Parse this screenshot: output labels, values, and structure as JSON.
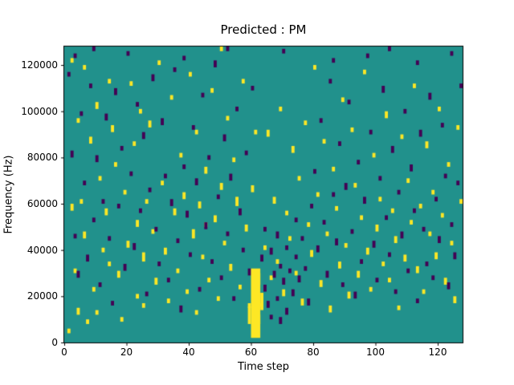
{
  "figure": {
    "title": "Predicted : PM",
    "xlabel": "Time step",
    "ylabel": "Frequency (Hz)"
  },
  "chart_data": {
    "type": "heatmap",
    "title": "Predicted : PM",
    "xlabel": "Time step",
    "ylabel": "Frequency (Hz)",
    "xlim": [
      0,
      128
    ],
    "ylim": [
      0,
      128000
    ],
    "x_ticks": [
      0,
      20,
      40,
      60,
      80,
      100,
      120
    ],
    "y_ticks": [
      0,
      20000,
      40000,
      60000,
      80000,
      100000,
      120000
    ],
    "grid": false,
    "legend": "none",
    "colors": {
      "background": "#21918c",
      "high": "#fde725",
      "low": "#440154",
      "figure_bg": "#ffffff",
      "spine": "#000000"
    },
    "streak": {
      "x": 60,
      "width": 3,
      "y_min": 2000,
      "y_max": 32000,
      "value": "high"
    },
    "points_high": [
      [
        1,
        4000,
        2
      ],
      [
        2,
        121000,
        2
      ],
      [
        2,
        57000,
        3
      ],
      [
        3,
        30000,
        2
      ],
      [
        4,
        95000,
        2
      ],
      [
        4,
        12000,
        3
      ],
      [
        5,
        60000,
        2
      ],
      [
        6,
        45000,
        3
      ],
      [
        6,
        118000,
        2
      ],
      [
        7,
        8000,
        2
      ],
      [
        8,
        86000,
        3
      ],
      [
        9,
        22000,
        2
      ],
      [
        10,
        12000,
        2
      ],
      [
        10,
        101000,
        3
      ],
      [
        11,
        70000,
        2
      ],
      [
        12,
        39000,
        2
      ],
      [
        13,
        55000,
        3
      ],
      [
        14,
        33000,
        2
      ],
      [
        14,
        112000,
        2
      ],
      [
        15,
        91000,
        3
      ],
      [
        16,
        76000,
        2
      ],
      [
        17,
        28000,
        3
      ],
      [
        18,
        9000,
        2
      ],
      [
        19,
        64000,
        2
      ],
      [
        20,
        41000,
        3
      ],
      [
        21,
        111000,
        2
      ],
      [
        22,
        85000,
        2
      ],
      [
        23,
        50000,
        3
      ],
      [
        23,
        19000,
        2
      ],
      [
        24,
        99000,
        2
      ],
      [
        25,
        35000,
        4
      ],
      [
        25,
        15000,
        2
      ],
      [
        26,
        60000,
        2
      ],
      [
        27,
        93000,
        3
      ],
      [
        28,
        47000,
        2
      ],
      [
        29,
        25000,
        3
      ],
      [
        30,
        120000,
        2
      ],
      [
        31,
        68000,
        2
      ],
      [
        32,
        38000,
        3
      ],
      [
        33,
        17000,
        2
      ],
      [
        34,
        105000,
        2
      ],
      [
        35,
        55000,
        3
      ],
      [
        36,
        30000,
        2
      ],
      [
        37,
        80000,
        2
      ],
      [
        38,
        62000,
        3
      ],
      [
        39,
        21000,
        2
      ],
      [
        40,
        115000,
        2
      ],
      [
        41,
        45000,
        4
      ],
      [
        42,
        90000,
        2
      ],
      [
        42,
        12000,
        2
      ],
      [
        43,
        58000,
        3
      ],
      [
        44,
        36000,
        2
      ],
      [
        45,
        73000,
        3
      ],
      [
        45,
        50000,
        2
      ],
      [
        46,
        26000,
        2
      ],
      [
        47,
        108000,
        2
      ],
      [
        48,
        52000,
        3
      ],
      [
        49,
        18000,
        2
      ],
      [
        50,
        126000,
        2
      ],
      [
        50,
        66000,
        3
      ],
      [
        51,
        42000,
        2
      ],
      [
        52,
        96000,
        2
      ],
      [
        53,
        31000,
        3
      ],
      [
        54,
        78000,
        2
      ],
      [
        55,
        59000,
        4
      ],
      [
        56,
        23000,
        2
      ],
      [
        57,
        112000,
        2
      ],
      [
        58,
        48000,
        3
      ],
      [
        59,
        15000,
        2
      ],
      [
        60,
        65000,
        3
      ],
      [
        61,
        90000,
        2
      ],
      [
        61,
        18000,
        4
      ],
      [
        62,
        25000,
        5
      ],
      [
        62,
        8000,
        4
      ],
      [
        63,
        14000,
        3
      ],
      [
        64,
        40000,
        2
      ],
      [
        65,
        89000,
        3
      ],
      [
        66,
        27000,
        2
      ],
      [
        67,
        60000,
        3
      ],
      [
        68,
        34000,
        2
      ],
      [
        69,
        100000,
        2
      ],
      [
        70,
        20000,
        3
      ],
      [
        71,
        55000,
        2
      ],
      [
        72,
        44000,
        2
      ],
      [
        73,
        82000,
        3
      ],
      [
        74,
        29000,
        2
      ],
      [
        75,
        70000,
        2
      ],
      [
        76,
        16000,
        3
      ],
      [
        77,
        94000,
        2
      ],
      [
        78,
        50000,
        2
      ],
      [
        79,
        37000,
        3
      ],
      [
        80,
        118000,
        2
      ],
      [
        81,
        63000,
        2
      ],
      [
        82,
        24000,
        3
      ],
      [
        83,
        86000,
        2
      ],
      [
        84,
        46000,
        2
      ],
      [
        85,
        13000,
        3
      ],
      [
        86,
        74000,
        2
      ],
      [
        87,
        57000,
        2
      ],
      [
        88,
        32000,
        3
      ],
      [
        89,
        104000,
        2
      ],
      [
        90,
        41000,
        2
      ],
      [
        91,
        19000,
        3
      ],
      [
        92,
        91000,
        2
      ],
      [
        93,
        67000,
        2
      ],
      [
        94,
        28000,
        3
      ],
      [
        95,
        53000,
        2
      ],
      [
        96,
        116000,
        2
      ],
      [
        97,
        38000,
        3
      ],
      [
        98,
        22000,
        2
      ],
      [
        99,
        80000,
        2
      ],
      [
        100,
        48000,
        3
      ],
      [
        101,
        61000,
        2
      ],
      [
        102,
        33000,
        2
      ],
      [
        103,
        97000,
        3
      ],
      [
        104,
        26000,
        2
      ],
      [
        105,
        56000,
        2
      ],
      [
        106,
        43000,
        3
      ],
      [
        107,
        14000,
        2
      ],
      [
        108,
        88000,
        2
      ],
      [
        109,
        35000,
        3
      ],
      [
        110,
        69000,
        2
      ],
      [
        111,
        51000,
        2
      ],
      [
        112,
        110000,
        2
      ],
      [
        113,
        30000,
        3
      ],
      [
        114,
        58000,
        2
      ],
      [
        115,
        21000,
        2
      ],
      [
        116,
        84000,
        3
      ],
      [
        117,
        46000,
        2
      ],
      [
        118,
        64000,
        2
      ],
      [
        119,
        36000,
        3
      ],
      [
        120,
        100000,
        2
      ],
      [
        121,
        54000,
        2
      ],
      [
        122,
        25000,
        3
      ],
      [
        123,
        76000,
        2
      ],
      [
        124,
        42000,
        2
      ],
      [
        125,
        17000,
        3
      ],
      [
        126,
        92000,
        2
      ],
      [
        127,
        60000,
        2
      ]
    ],
    "points_low": [
      [
        1,
        115000,
        2
      ],
      [
        2,
        80000,
        3
      ],
      [
        3,
        123000,
        2
      ],
      [
        3,
        45000,
        2
      ],
      [
        4,
        28000,
        3
      ],
      [
        5,
        98000,
        2
      ],
      [
        6,
        68000,
        2
      ],
      [
        7,
        35000,
        3
      ],
      [
        8,
        110000,
        2
      ],
      [
        9,
        126000,
        2
      ],
      [
        9,
        52000,
        2
      ],
      [
        10,
        78000,
        3
      ],
      [
        11,
        24000,
        2
      ],
      [
        12,
        60000,
        2
      ],
      [
        13,
        96000,
        3
      ],
      [
        14,
        44000,
        2
      ],
      [
        15,
        16000,
        2
      ],
      [
        16,
        107000,
        3
      ],
      [
        17,
        58000,
        2
      ],
      [
        18,
        83000,
        2
      ],
      [
        19,
        31000,
        3
      ],
      [
        20,
        124000,
        2
      ],
      [
        21,
        72000,
        2
      ],
      [
        22,
        40000,
        3
      ],
      [
        23,
        102000,
        2
      ],
      [
        24,
        56000,
        2
      ],
      [
        25,
        88000,
        3
      ],
      [
        26,
        20000,
        2
      ],
      [
        27,
        65000,
        2
      ],
      [
        28,
        113000,
        3
      ],
      [
        29,
        48000,
        2
      ],
      [
        30,
        33000,
        2
      ],
      [
        31,
        94000,
        3
      ],
      [
        32,
        71000,
        2
      ],
      [
        33,
        26000,
        2
      ],
      [
        34,
        59000,
        3
      ],
      [
        35,
        117000,
        2
      ],
      [
        36,
        43000,
        2
      ],
      [
        37,
        13000,
        3
      ],
      [
        38,
        122000,
        2
      ],
      [
        38,
        75000,
        2
      ],
      [
        39,
        54000,
        3
      ],
      [
        40,
        37000,
        2
      ],
      [
        41,
        92000,
        2
      ],
      [
        42,
        68000,
        3
      ],
      [
        43,
        22000,
        2
      ],
      [
        44,
        106000,
        2
      ],
      [
        45,
        49000,
        3
      ],
      [
        46,
        79000,
        2
      ],
      [
        47,
        34000,
        2
      ],
      [
        48,
        119000,
        3
      ],
      [
        49,
        62000,
        2
      ],
      [
        50,
        27000,
        2
      ],
      [
        51,
        87000,
        3
      ],
      [
        52,
        127000,
        2
      ],
      [
        52,
        46000,
        2
      ],
      [
        53,
        70000,
        3
      ],
      [
        54,
        18000,
        2
      ],
      [
        55,
        100000,
        2
      ],
      [
        56,
        55000,
        3
      ],
      [
        57,
        39000,
        2
      ],
      [
        58,
        81000,
        2
      ],
      [
        59,
        29000,
        3
      ],
      [
        60,
        109000,
        2
      ],
      [
        63,
        35000,
        3
      ],
      [
        64,
        22000,
        3
      ],
      [
        64,
        48000,
        2
      ],
      [
        65,
        15000,
        3
      ],
      [
        66,
        38000,
        3
      ],
      [
        66,
        10000,
        2
      ],
      [
        67,
        28000,
        3
      ],
      [
        68,
        18000,
        2
      ],
      [
        68,
        45000,
        3
      ],
      [
        69,
        32000,
        2
      ],
      [
        69,
        8000,
        3
      ],
      [
        70,
        25000,
        3
      ],
      [
        70,
        125000,
        2
      ],
      [
        71,
        40000,
        2
      ],
      [
        71,
        12000,
        3
      ],
      [
        72,
        30000,
        2
      ],
      [
        73,
        20000,
        3
      ],
      [
        74,
        52000,
        2
      ],
      [
        74,
        36000,
        2
      ],
      [
        75,
        26000,
        3
      ],
      [
        76,
        44000,
        2
      ],
      [
        77,
        31000,
        2
      ],
      [
        78,
        16000,
        3
      ],
      [
        79,
        58000,
        2
      ],
      [
        80,
        73000,
        2
      ],
      [
        81,
        39000,
        3
      ],
      [
        82,
        95000,
        2
      ],
      [
        83,
        51000,
        2
      ],
      [
        84,
        28000,
        3
      ],
      [
        85,
        112000,
        2
      ],
      [
        86,
        121000,
        2
      ],
      [
        86,
        63000,
        2
      ],
      [
        87,
        42000,
        3
      ],
      [
        88,
        85000,
        2
      ],
      [
        89,
        24000,
        2
      ],
      [
        90,
        66000,
        3
      ],
      [
        91,
        103000,
        2
      ],
      [
        92,
        47000,
        2
      ],
      [
        93,
        19000,
        3
      ],
      [
        94,
        77000,
        2
      ],
      [
        95,
        34000,
        2
      ],
      [
        96,
        60000,
        3
      ],
      [
        97,
        123000,
        2
      ],
      [
        98,
        90000,
        2
      ],
      [
        99,
        41000,
        3
      ],
      [
        100,
        26000,
        2
      ],
      [
        101,
        70000,
        2
      ],
      [
        102,
        108000,
        3
      ],
      [
        103,
        53000,
        2
      ],
      [
        104,
        126000,
        2
      ],
      [
        104,
        37000,
        2
      ],
      [
        105,
        82000,
        3
      ],
      [
        106,
        21000,
        2
      ],
      [
        107,
        64000,
        2
      ],
      [
        108,
        45000,
        3
      ],
      [
        109,
        99000,
        2
      ],
      [
        110,
        30000,
        2
      ],
      [
        111,
        74000,
        3
      ],
      [
        112,
        56000,
        2
      ],
      [
        113,
        120000,
        2
      ],
      [
        113,
        17000,
        2
      ],
      [
        114,
        89000,
        3
      ],
      [
        115,
        48000,
        2
      ],
      [
        116,
        33000,
        2
      ],
      [
        117,
        105000,
        3
      ],
      [
        118,
        27000,
        2
      ],
      [
        119,
        61000,
        2
      ],
      [
        120,
        43000,
        3
      ],
      [
        121,
        93000,
        2
      ],
      [
        122,
        71000,
        2
      ],
      [
        123,
        23000,
        3
      ],
      [
        124,
        124000,
        2
      ],
      [
        124,
        50000,
        2
      ],
      [
        125,
        36000,
        3
      ],
      [
        126,
        68000,
        2
      ],
      [
        127,
        110000,
        2
      ]
    ]
  }
}
